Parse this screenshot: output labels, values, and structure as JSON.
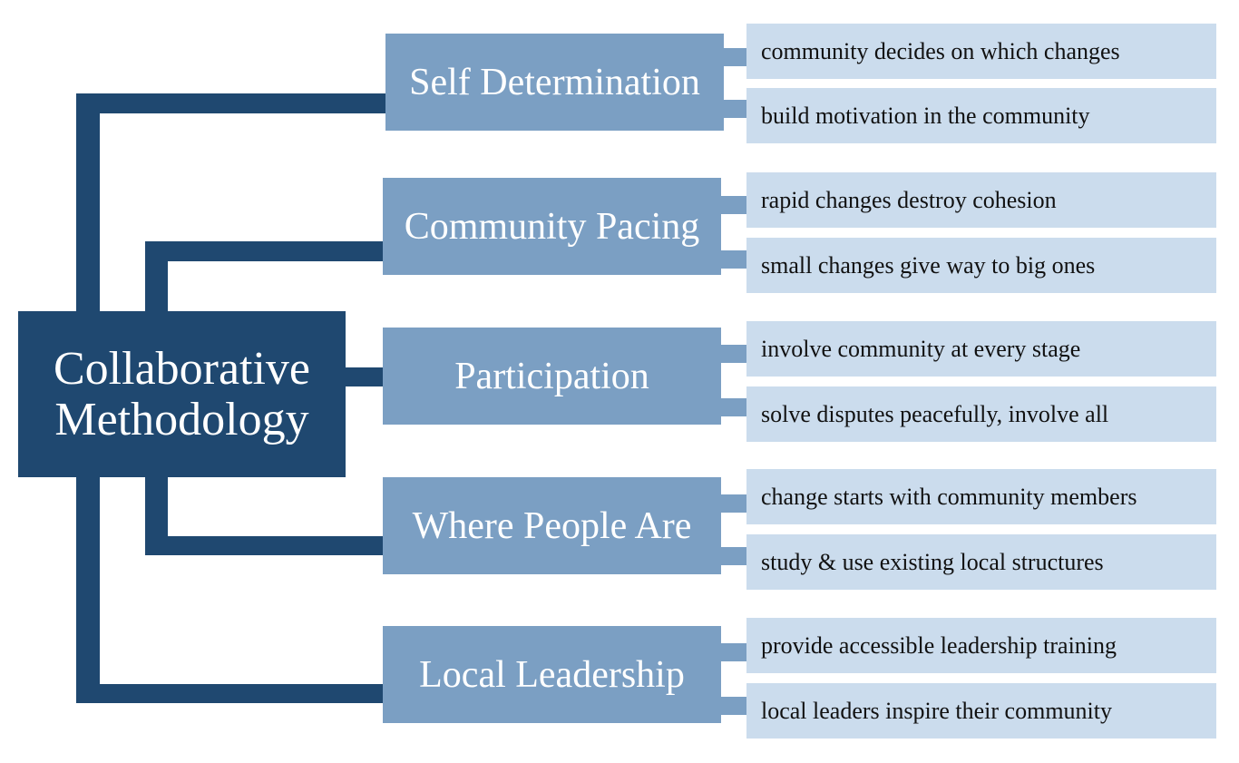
{
  "colors": {
    "root": "#1f4870",
    "connector": "#1f4870",
    "category": "#7b9fc3",
    "category_connector": "#7b9fc3",
    "detail": "#cbdced",
    "detail_text": "#111111",
    "light_text": "#ffffff"
  },
  "root": {
    "line1": "Collaborative",
    "line2": "Methodology"
  },
  "categories": [
    {
      "label": "Self Determination",
      "details": [
        "community decides on which changes",
        "build motivation in the community"
      ]
    },
    {
      "label": "Community Pacing",
      "details": [
        "rapid changes destroy cohesion",
        "small changes give way to big ones"
      ]
    },
    {
      "label": "Participation",
      "details": [
        "involve community at every stage",
        "solve disputes peacefully, involve all"
      ]
    },
    {
      "label": "Where People Are",
      "details": [
        "change starts with community members",
        "study & use existing local structures"
      ]
    },
    {
      "label": "Local Leadership",
      "details": [
        "provide accessible leadership training",
        "local leaders inspire their community"
      ]
    }
  ]
}
